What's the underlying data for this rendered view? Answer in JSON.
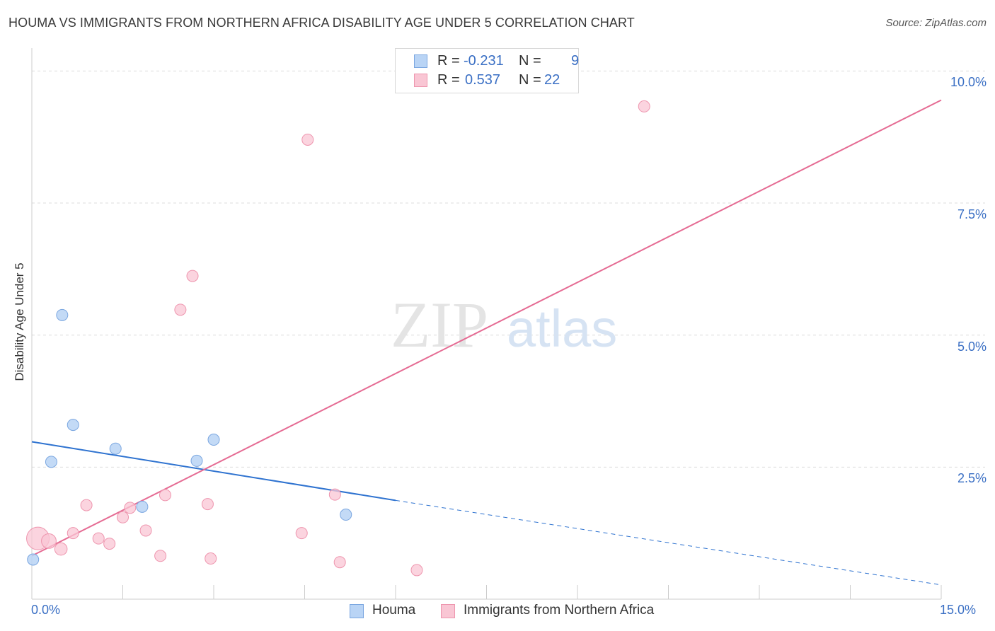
{
  "title": "HOUMA VS IMMIGRANTS FROM NORTHERN AFRICA DISABILITY AGE UNDER 5 CORRELATION CHART",
  "source": "Source: ZipAtlas.com",
  "watermark": {
    "zip": "ZIP",
    "atlas": "atlas"
  },
  "legend_top": {
    "rows": [
      {
        "r_label": "R =",
        "r_value": "-0.231",
        "n_label": "N =",
        "n_value": "9"
      },
      {
        "r_label": "R =",
        "r_value": "0.537",
        "n_label": "N =",
        "n_value": "22"
      }
    ]
  },
  "colors": {
    "houma_fill": "#b9d4f5",
    "houma_stroke": "#7aa6e0",
    "houma_line": "#2f73d0",
    "imm_fill": "#f9c6d4",
    "imm_stroke": "#ee95ae",
    "imm_line": "#e56b93",
    "tick_text": "#3a6fc4",
    "grid": "#dcdcdc"
  },
  "chart_data": {
    "type": "scatter",
    "title": "HOUMA VS IMMIGRANTS FROM NORTHERN AFRICA DISABILITY AGE UNDER 5 CORRELATION CHART",
    "xlabel": "",
    "ylabel": "Disability Age Under 5",
    "xlim": [
      0,
      15
    ],
    "ylim": [
      0,
      10.3
    ],
    "x_tick_labels": [
      "0.0%",
      "15.0%"
    ],
    "y_ticks": [
      2.5,
      5.0,
      7.5,
      10.0
    ],
    "y_tick_labels": [
      "2.5%",
      "5.0%",
      "7.5%",
      "10.0%"
    ],
    "grid": true,
    "legend_position": "top-center",
    "series": [
      {
        "name": "Houma",
        "points": [
          {
            "x": 0.02,
            "y": 0.75,
            "s": 1
          },
          {
            "x": 0.5,
            "y": 5.38,
            "s": 1
          },
          {
            "x": 0.68,
            "y": 3.3,
            "s": 1
          },
          {
            "x": 0.32,
            "y": 2.6,
            "s": 1
          },
          {
            "x": 1.38,
            "y": 2.85,
            "s": 1
          },
          {
            "x": 1.82,
            "y": 1.75,
            "s": 1
          },
          {
            "x": 2.72,
            "y": 2.62,
            "s": 1
          },
          {
            "x": 3.0,
            "y": 3.02,
            "s": 1
          },
          {
            "x": 5.18,
            "y": 1.6,
            "s": 1
          }
        ],
        "trend": {
          "x0": 0,
          "y0": 2.98,
          "x1": 6.0,
          "y1": 1.87,
          "dash_to_x": 15.0,
          "dash_to_y": 0.27
        }
      },
      {
        "name": "Immigrants from Northern Africa",
        "points": [
          {
            "x": 0.1,
            "y": 1.15,
            "s": 2.0
          },
          {
            "x": 0.28,
            "y": 1.1,
            "s": 1.3
          },
          {
            "x": 0.48,
            "y": 0.95,
            "s": 1.1
          },
          {
            "x": 0.9,
            "y": 1.78,
            "s": 1
          },
          {
            "x": 0.68,
            "y": 1.25,
            "s": 1
          },
          {
            "x": 1.1,
            "y": 1.15,
            "s": 1
          },
          {
            "x": 1.28,
            "y": 1.05,
            "s": 1
          },
          {
            "x": 1.5,
            "y": 1.55,
            "s": 1
          },
          {
            "x": 1.62,
            "y": 1.73,
            "s": 1
          },
          {
            "x": 1.88,
            "y": 1.3,
            "s": 1
          },
          {
            "x": 2.2,
            "y": 1.97,
            "s": 1
          },
          {
            "x": 2.12,
            "y": 0.82,
            "s": 1
          },
          {
            "x": 2.45,
            "y": 5.48,
            "s": 1
          },
          {
            "x": 2.65,
            "y": 6.12,
            "s": 1
          },
          {
            "x": 2.9,
            "y": 1.8,
            "s": 1
          },
          {
            "x": 2.95,
            "y": 0.77,
            "s": 1
          },
          {
            "x": 4.45,
            "y": 1.25,
            "s": 1
          },
          {
            "x": 4.55,
            "y": 8.7,
            "s": 1
          },
          {
            "x": 5.0,
            "y": 1.98,
            "s": 1
          },
          {
            "x": 5.08,
            "y": 0.7,
            "s": 1
          },
          {
            "x": 6.35,
            "y": 0.55,
            "s": 1
          },
          {
            "x": 10.1,
            "y": 9.33,
            "s": 1
          }
        ],
        "trend": {
          "x0": 0,
          "y0": 0.82,
          "x1": 15.0,
          "y1": 9.45
        }
      }
    ]
  },
  "bottom_legend": [
    {
      "label": "Houma"
    },
    {
      "label": "Immigrants from Northern Africa"
    }
  ]
}
